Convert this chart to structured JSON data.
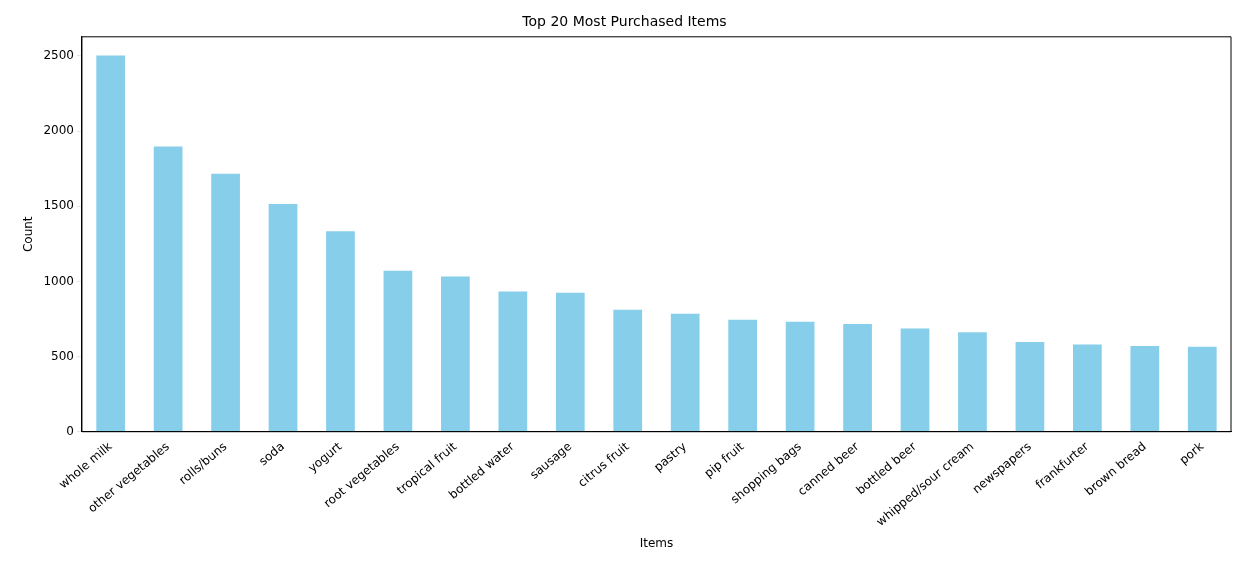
{
  "chart_data": {
    "type": "bar",
    "title": "Top 20 Most Purchased Items",
    "xlabel": "Items",
    "ylabel": "Count",
    "categories": [
      "whole milk",
      "other vegetables",
      "rolls/buns",
      "soda",
      "yogurt",
      "root vegetables",
      "tropical fruit",
      "bottled water",
      "sausage",
      "citrus fruit",
      "pastry",
      "pip fruit",
      "shopping bags",
      "canned beer",
      "bottled beer",
      "whipped/sour cream",
      "newspapers",
      "frankfurter",
      "brown bread",
      "pork"
    ],
    "values": [
      2502,
      1898,
      1716,
      1514,
      1334,
      1071,
      1032,
      933,
      924,
      812,
      785,
      744,
      731,
      717,
      687,
      662,
      596,
      580,
      571,
      566
    ],
    "color": "#87ceeb",
    "ylim": [
      0,
      2627
    ],
    "yticks": [
      0,
      500,
      1000,
      1500,
      2000,
      2500
    ],
    "grid": false,
    "legend": false
  }
}
